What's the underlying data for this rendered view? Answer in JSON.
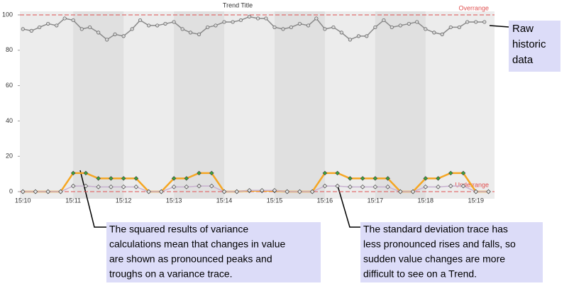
{
  "chart_data": {
    "type": "line",
    "title": "Trend Title",
    "xlim": [
      909.94,
      919.37
    ],
    "xticks": [
      {
        "value": 910,
        "label": "15:10"
      },
      {
        "value": 911,
        "label": "15:11"
      },
      {
        "value": 912,
        "label": "15:12"
      },
      {
        "value": 913,
        "label": "15:13"
      },
      {
        "value": 914,
        "label": "15:14"
      },
      {
        "value": 915,
        "label": "15:15"
      },
      {
        "value": 916,
        "label": "15:16"
      },
      {
        "value": 917,
        "label": "15:17"
      },
      {
        "value": 918,
        "label": "15:18"
      },
      {
        "value": 919,
        "label": "15:19"
      }
    ],
    "ylim": [
      -4,
      102
    ],
    "yticks": [
      0,
      20,
      40,
      60,
      80,
      100
    ],
    "limits": [
      {
        "value": 100,
        "label": "Overrange",
        "color": "#e05050"
      },
      {
        "value": 0,
        "label": "Underrange",
        "color": "#e05050"
      }
    ],
    "series": [
      {
        "color": "#8a8a8a",
        "marker_color": "#d8d8d8",
        "x": [
          910,
          910.17,
          910.33,
          910.5,
          910.67,
          910.83,
          911,
          911.17,
          911.33,
          911.5,
          911.67,
          911.83,
          912,
          912.17,
          912.33,
          912.5,
          912.67,
          912.83,
          913,
          913.17,
          913.33,
          913.5,
          913.67,
          913.83,
          914,
          914.17,
          914.33,
          914.5,
          914.67,
          914.83,
          915,
          915.17,
          915.33,
          915.5,
          915.67,
          915.83,
          916,
          916.17,
          916.33,
          916.5,
          916.67,
          916.83,
          917,
          917.17,
          917.33,
          917.5,
          917.67,
          917.83,
          918,
          918.17,
          918.33,
          918.5,
          918.67,
          918.83,
          919,
          919.17
        ],
        "values": [
          92,
          91,
          93,
          95,
          94,
          98,
          97,
          92,
          93,
          90,
          86,
          89,
          88,
          92,
          97,
          94,
          94,
          95,
          96,
          92,
          90,
          89,
          93,
          94,
          96,
          96,
          97,
          99,
          98,
          98,
          93,
          92,
          93,
          95,
          94,
          98,
          92,
          93,
          90,
          86,
          88,
          88,
          93,
          97,
          93,
          94,
          95,
          96,
          92,
          90,
          89,
          93,
          93,
          96,
          96,
          96
        ]
      },
      {
        "color": "#f5a623",
        "marker_color": "#3aa83a",
        "x": [
          910,
          910.25,
          910.5,
          910.75,
          911,
          911.25,
          911.5,
          911.75,
          912,
          912.25,
          912.5,
          912.75,
          913,
          913.25,
          913.5,
          913.75,
          914,
          914.25,
          914.5,
          914.75,
          915,
          915.25,
          915.5,
          915.75,
          916,
          916.25,
          916.5,
          916.75,
          917,
          917.25,
          917.5,
          917.75,
          918,
          918.25,
          918.5,
          918.75,
          919,
          919.25
        ],
        "values": [
          0,
          0,
          0,
          0,
          10.5,
          10.5,
          7.5,
          7.5,
          7.5,
          7.5,
          0,
          0,
          7.5,
          7.5,
          10.5,
          10.5,
          0,
          0,
          0.5,
          0.5,
          0.5,
          0,
          0,
          0,
          10.5,
          10.5,
          7.5,
          7.5,
          7.5,
          7.5,
          0,
          0,
          7.5,
          7.5,
          10.5,
          10.5,
          0,
          0
        ]
      },
      {
        "color": "#c8b0d0",
        "marker_color": "#e8e8e8",
        "x": [
          910,
          910.25,
          910.5,
          910.75,
          911,
          911.25,
          911.5,
          911.75,
          912,
          912.25,
          912.5,
          912.75,
          913,
          913.25,
          913.5,
          913.75,
          914,
          914.25,
          914.5,
          914.75,
          915,
          915.25,
          915.5,
          915.75,
          916,
          916.25,
          916.5,
          916.75,
          917,
          917.25,
          917.5,
          917.75,
          918,
          918.25,
          918.5,
          918.75,
          919,
          919.25
        ],
        "values": [
          0,
          0,
          0,
          0,
          3.2,
          3.2,
          2.7,
          2.7,
          2.7,
          2.7,
          0,
          0,
          2.7,
          2.7,
          3.2,
          3.2,
          0,
          0,
          0.7,
          0.7,
          0.7,
          0,
          0,
          0,
          3.2,
          3.2,
          2.7,
          2.7,
          2.7,
          2.7,
          0,
          0,
          2.7,
          2.7,
          3.2,
          3.2,
          0,
          0
        ]
      }
    ],
    "annotations": [
      {
        "lines": [
          "Raw",
          "historic",
          "data"
        ]
      },
      {
        "lines": [
          "The squared results of variance",
          "calculations mean that changes in value",
          "are shown as pronounced peaks and",
          "troughs on a variance trace."
        ]
      },
      {
        "lines": [
          "The standard deviation trace has",
          "less pronounced rises and falls, so",
          "sudden value changes are more",
          "difficult to see on a Trend."
        ]
      }
    ]
  }
}
